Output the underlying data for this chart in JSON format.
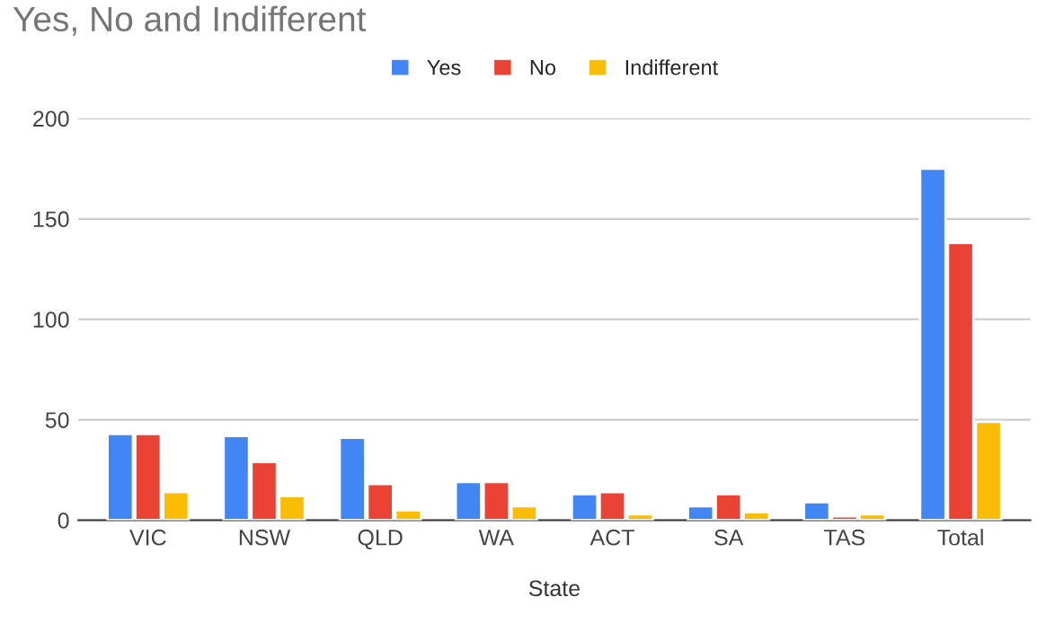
{
  "chart_data": {
    "type": "bar",
    "title": "Yes, No and Indifferent",
    "xlabel": "State",
    "categories": [
      "VIC",
      "NSW",
      "QLD",
      "WA",
      "ACT",
      "SA",
      "TAS",
      "Total"
    ],
    "series": [
      {
        "name": "Yes",
        "color": "#4285f4",
        "values": [
          43,
          42,
          41,
          19,
          13,
          7,
          9,
          175
        ]
      },
      {
        "name": "No",
        "color": "#ea4335",
        "values": [
          43,
          29,
          18,
          19,
          14,
          13,
          2,
          138
        ]
      },
      {
        "name": "Indifferent",
        "color": "#fbbc04",
        "values": [
          14,
          12,
          5,
          7,
          3,
          4,
          3,
          49
        ]
      }
    ],
    "ylim": [
      0,
      200
    ],
    "yticks": [
      0,
      50,
      100,
      150,
      200
    ],
    "grid": "y",
    "legend": "top"
  }
}
